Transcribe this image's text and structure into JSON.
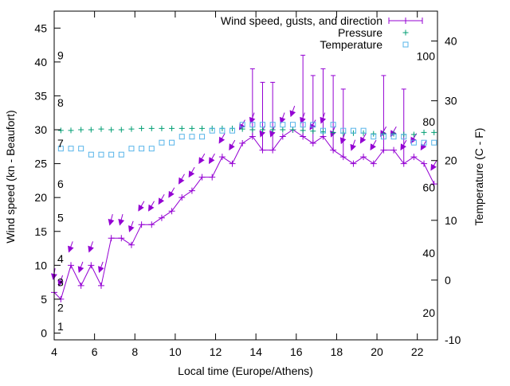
{
  "chart_data": {
    "type": "line",
    "xlabel": "Local time (Europe/Athens)",
    "ylabel": "Wind speed (kn - Beaufort)",
    "y2label": "Temperature (C - F)",
    "xlim": [
      4.0,
      23.0
    ],
    "ylim": [
      -1,
      47.5
    ],
    "y2lim": [
      -10,
      45
    ],
    "x_ticks": [
      4,
      6,
      8,
      10,
      12,
      14,
      16,
      18,
      20,
      22
    ],
    "y_ticks": [
      0,
      5,
      10,
      15,
      20,
      25,
      30,
      35,
      40,
      45
    ],
    "y2_ticks": [
      -10,
      0,
      10,
      20,
      30,
      40
    ],
    "beaufort_labels": [
      {
        "value": 1.0,
        "label": "1"
      },
      {
        "value": 3.75,
        "label": "2"
      },
      {
        "value": 7.5,
        "label": "3"
      },
      {
        "value": 11.0,
        "label": "4"
      },
      {
        "value": 17.0,
        "label": "5"
      },
      {
        "value": 22.0,
        "label": "6"
      },
      {
        "value": 28.0,
        "label": "7"
      },
      {
        "value": 34.0,
        "label": "8"
      },
      {
        "value": 41.0,
        "label": "9"
      }
    ],
    "fahrenheit_labels": [
      {
        "value": -5.5,
        "label": "20"
      },
      {
        "value": 4.5,
        "label": "40"
      },
      {
        "value": 15.5,
        "label": "60"
      },
      {
        "value": 26.5,
        "label": "80"
      },
      {
        "value": 37.5,
        "label": "100"
      }
    ],
    "grid": false,
    "legend_position": "top-right",
    "colors": {
      "wind": "#9400d3",
      "pressure": "#009e73",
      "temperature": "#56b4e9"
    },
    "series": [
      {
        "name": "Wind speed, gusts, and direction",
        "axis": "y",
        "x": [
          4.0,
          4.33,
          4.83,
          5.33,
          5.83,
          6.33,
          6.83,
          7.33,
          7.83,
          8.33,
          8.83,
          9.33,
          9.83,
          10.33,
          10.83,
          11.33,
          11.83,
          12.33,
          12.83,
          13.33,
          13.83,
          14.33,
          14.83,
          15.33,
          15.83,
          16.33,
          16.83,
          17.33,
          17.83,
          18.33,
          18.83,
          19.33,
          19.83,
          20.33,
          20.83,
          21.33,
          21.83,
          22.33,
          22.83
        ],
        "values": [
          6,
          5,
          10,
          7,
          10,
          7,
          14,
          14,
          13,
          16,
          16,
          17,
          18,
          20,
          21,
          23,
          23,
          26,
          25,
          28,
          29,
          27,
          27,
          29,
          30,
          29,
          28,
          29,
          27,
          26,
          25,
          26,
          25,
          27,
          27,
          25,
          26,
          25,
          22
        ],
        "gusts": [
          null,
          null,
          null,
          null,
          null,
          null,
          null,
          null,
          null,
          null,
          null,
          null,
          null,
          null,
          null,
          null,
          null,
          null,
          null,
          null,
          39,
          37,
          37,
          null,
          null,
          41,
          38,
          39,
          38,
          36,
          null,
          null,
          null,
          38,
          null,
          36,
          null,
          null,
          null
        ],
        "direction_deg": [
          10,
          20,
          20,
          20,
          20,
          20,
          15,
          15,
          20,
          30,
          30,
          30,
          30,
          30,
          30,
          30,
          30,
          30,
          30,
          30,
          20,
          20,
          20,
          20,
          20,
          20,
          30,
          20,
          20,
          20,
          20,
          30,
          30,
          30,
          30,
          30,
          30,
          30,
          30
        ]
      },
      {
        "name": "Pressure",
        "axis": "y",
        "x": [
          4.33,
          4.83,
          5.33,
          5.83,
          6.33,
          6.83,
          7.33,
          7.83,
          8.33,
          8.83,
          9.33,
          9.83,
          10.33,
          10.83,
          11.33,
          11.83,
          12.33,
          12.83,
          13.33,
          13.83,
          14.33,
          14.83,
          15.33,
          15.83,
          16.33,
          16.83,
          17.33,
          17.83,
          18.33,
          18.83,
          19.33,
          19.83,
          20.33,
          20.83,
          21.33,
          21.83,
          22.33,
          22.83
        ],
        "values": [
          29.9,
          29.9,
          30.0,
          30.0,
          30.1,
          30.0,
          30.0,
          30.1,
          30.2,
          30.2,
          30.2,
          30.2,
          30.2,
          30.2,
          30.2,
          30.2,
          30.2,
          30.2,
          30.1,
          30.0,
          30.0,
          30.0,
          30.0,
          30.0,
          29.9,
          29.8,
          29.7,
          29.6,
          29.5,
          29.5,
          29.5,
          29.4,
          29.4,
          29.4,
          29.3,
          29.3,
          29.6,
          29.6
        ]
      },
      {
        "name": "Temperature",
        "axis": "y2",
        "x": [
          4.33,
          4.83,
          5.33,
          5.83,
          6.33,
          6.83,
          7.33,
          7.83,
          8.33,
          8.83,
          9.33,
          9.83,
          10.33,
          10.83,
          11.33,
          11.83,
          12.33,
          12.83,
          13.33,
          13.83,
          14.33,
          14.83,
          15.33,
          15.83,
          16.33,
          16.83,
          17.33,
          17.83,
          18.33,
          18.83,
          19.33,
          19.83,
          20.33,
          20.83,
          21.33,
          21.83,
          22.33,
          22.83
        ],
        "values": [
          22,
          22,
          22,
          21,
          21,
          21,
          21,
          22,
          22,
          22,
          23,
          23,
          24,
          24,
          24,
          25,
          25,
          25,
          26,
          26,
          26,
          26,
          26,
          26,
          26,
          26,
          25,
          26,
          25,
          25,
          25,
          24,
          24,
          24,
          24,
          23,
          23,
          23
        ]
      }
    ]
  }
}
